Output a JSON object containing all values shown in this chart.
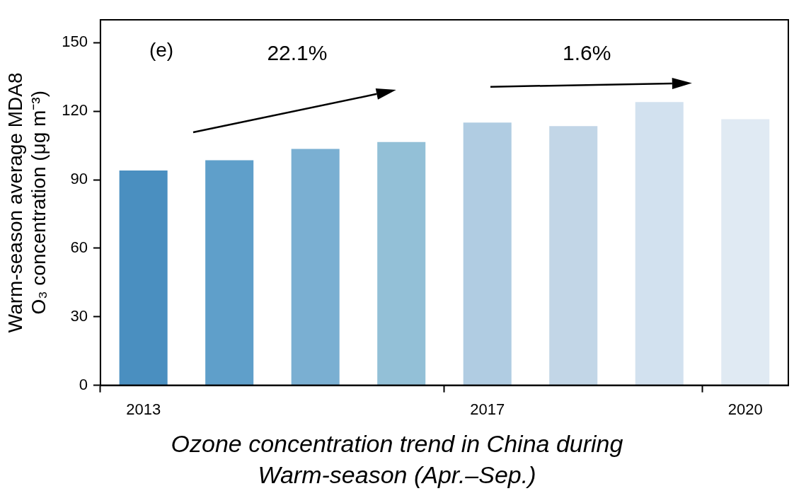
{
  "chart_data": {
    "type": "bar",
    "xlabel": "Ozone concentration trend in China during Warm-season (Apr.–Sep.)",
    "ylabel": "Warm-season average MDA8 O₃ concentration (μg m⁻³)",
    "categories": [
      "2013",
      null,
      null,
      null,
      "2017",
      null,
      null,
      "2020"
    ],
    "values": [
      94,
      98.5,
      103.5,
      106.5,
      115,
      113.5,
      124,
      116.5
    ],
    "colors": [
      "#4a8fc0",
      "#5f9fca",
      "#7aafd2",
      "#93c0d7",
      "#b0cce2",
      "#c2d6e7",
      "#d2e1ef",
      "#e0eaf3"
    ],
    "ylim": [
      0,
      160
    ],
    "yticks": [
      0,
      30,
      60,
      90,
      120,
      150
    ],
    "grid": false,
    "legend": false,
    "annotations": [
      "(e)",
      "22.1%",
      "1.6%"
    ]
  }
}
